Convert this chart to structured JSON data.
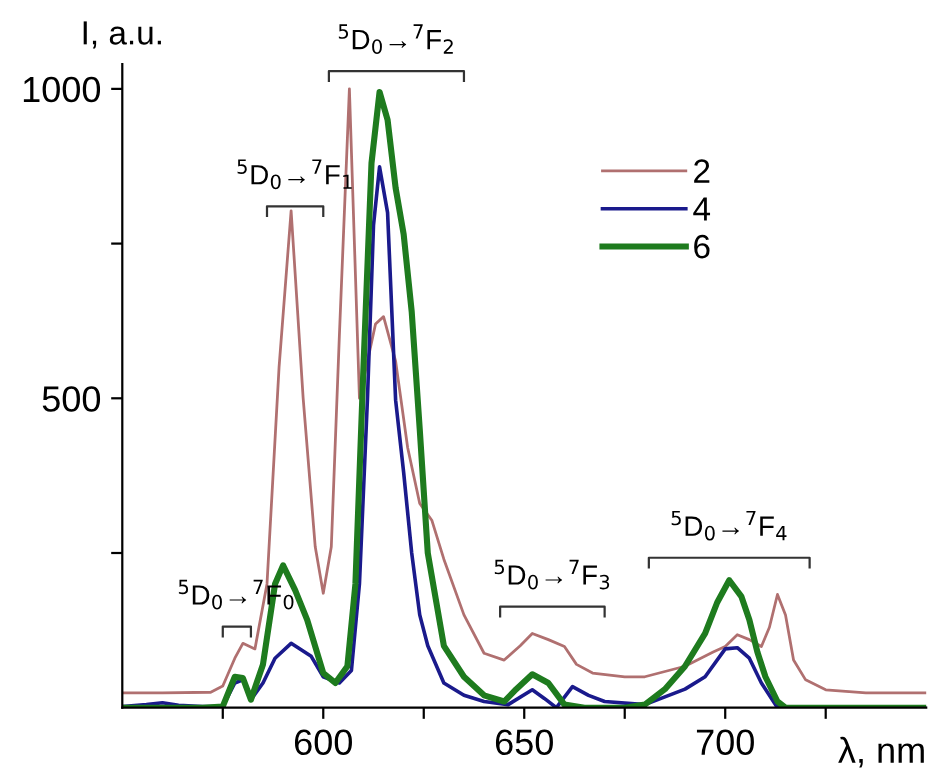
{
  "chart_data": {
    "type": "line",
    "xlabel": "λ, nm",
    "ylabel": "I, a.u.",
    "xlim": [
      550,
      750
    ],
    "ylim": [
      0,
      1040
    ],
    "xticks": [
      {
        "value": 575,
        "label": null
      },
      600,
      {
        "value": 625,
        "label": null
      },
      650,
      {
        "value": 675,
        "label": null
      },
      700,
      {
        "value": 725,
        "label": null
      }
    ],
    "yticks": [
      {
        "value": 250,
        "label": null
      },
      500,
      {
        "value": 750,
        "label": null
      },
      1000
    ],
    "grid": false,
    "legend": "top right",
    "marker": "none",
    "line_style": "solid",
    "series": [
      {
        "name": "2",
        "color": "#b07070",
        "x": [
          550,
          560,
          572,
          575,
          578,
          580,
          583,
          586,
          589,
          592,
          595,
          598,
          600,
          602,
          604,
          606.5,
          609,
          611,
          613,
          615,
          618,
          621,
          624,
          627,
          630,
          635,
          640,
          645,
          649,
          652,
          656,
          660,
          663,
          667,
          675,
          680,
          690,
          697,
          700,
          703,
          706,
          709,
          711,
          713,
          715,
          717,
          720,
          725,
          735,
          750
        ],
        "values": [
          24,
          24,
          25,
          35,
          80,
          104,
          95,
          200,
          550,
          803,
          500,
          260,
          185,
          260,
          600,
          1000,
          500,
          560,
          620,
          632,
          560,
          420,
          330,
          303,
          240,
          150,
          88,
          77,
          100,
          120,
          110,
          99,
          70,
          56,
          50,
          50,
          67,
          90,
          99,
          118,
          110,
          99,
          130,
          183,
          150,
          77,
          45,
          29,
          24,
          24
        ]
      },
      {
        "name": "4",
        "color": "#1a1a8c",
        "x": [
          550,
          556,
          560,
          564,
          570,
          575,
          578,
          580,
          582,
          585,
          588,
          592,
          597,
          600,
          604,
          607,
          609,
          611,
          612.5,
          614,
          616,
          618,
          620,
          622,
          624,
          626,
          630,
          635,
          640,
          646,
          652,
          655,
          658,
          662,
          666,
          670,
          680,
          690,
          695,
          700,
          703,
          706,
          709,
          713,
          720,
          750
        ],
        "values": [
          2,
          5,
          8,
          4,
          2,
          2,
          40,
          45,
          13,
          40,
          80,
          104,
          83,
          50,
          40,
          60,
          200,
          500,
          780,
          874,
          800,
          497,
          380,
          250,
          150,
          100,
          40,
          20,
          10,
          5,
          29,
          15,
          0,
          34,
          20,
          10,
          5,
          30,
          50,
          95,
          97,
          80,
          40,
          0,
          0,
          0
        ]
      },
      {
        "name": "6",
        "color": "#1e7b1e",
        "x": [
          550,
          570,
          575,
          578,
          580,
          582,
          585,
          588,
          590,
          593,
          596,
          600,
          603,
          606,
          608,
          610,
          612,
          614,
          616,
          618,
          620,
          622,
          624,
          626,
          630,
          635,
          640,
          645,
          648,
          652,
          656,
          660,
          665,
          675,
          680,
          685,
          690,
          695,
          698,
          701,
          704,
          706,
          708,
          710,
          713,
          715,
          720,
          750
        ],
        "values": [
          0,
          0,
          2,
          50,
          48,
          13,
          70,
          200,
          230,
          190,
          142,
          56,
          40,
          67,
          200,
          550,
          880,
          995,
          950,
          840,
          765,
          640,
          450,
          250,
          100,
          50,
          20,
          10,
          30,
          54,
          40,
          5,
          0,
          0,
          5,
          30,
          67,
          120,
          170,
          206,
          180,
          142,
          90,
          50,
          10,
          0,
          0,
          0
        ]
      }
    ],
    "annotations": [
      "$^{5}$D$_{0}$→$^{7}$F$_{0}$",
      "$^{5}$D$_{0}$→$^{7}$F$_{1}$",
      "$^{5}$D$_{0}$→$^{7}$F$_{2}$",
      "$^{5}$D$_{0}$→$^{7}$F$_{3}$",
      "$^{5}$D$_{0}$→$^{7}$F$_{4}$"
    ]
  }
}
